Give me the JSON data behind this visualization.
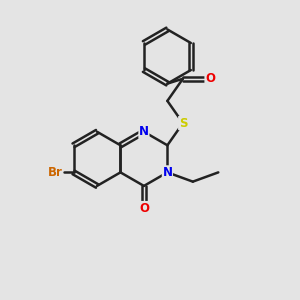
{
  "bg_color": "#e4e4e4",
  "bond_color": "#222222",
  "bond_width": 1.8,
  "atom_colors": {
    "N": "#0000ee",
    "O": "#ee0000",
    "S": "#cccc00",
    "Br": "#cc6600",
    "C": "#222222"
  },
  "font_size": 8.5,
  "fig_size": [
    3.0,
    3.0
  ],
  "dpi": 100,
  "bl": 0.92
}
